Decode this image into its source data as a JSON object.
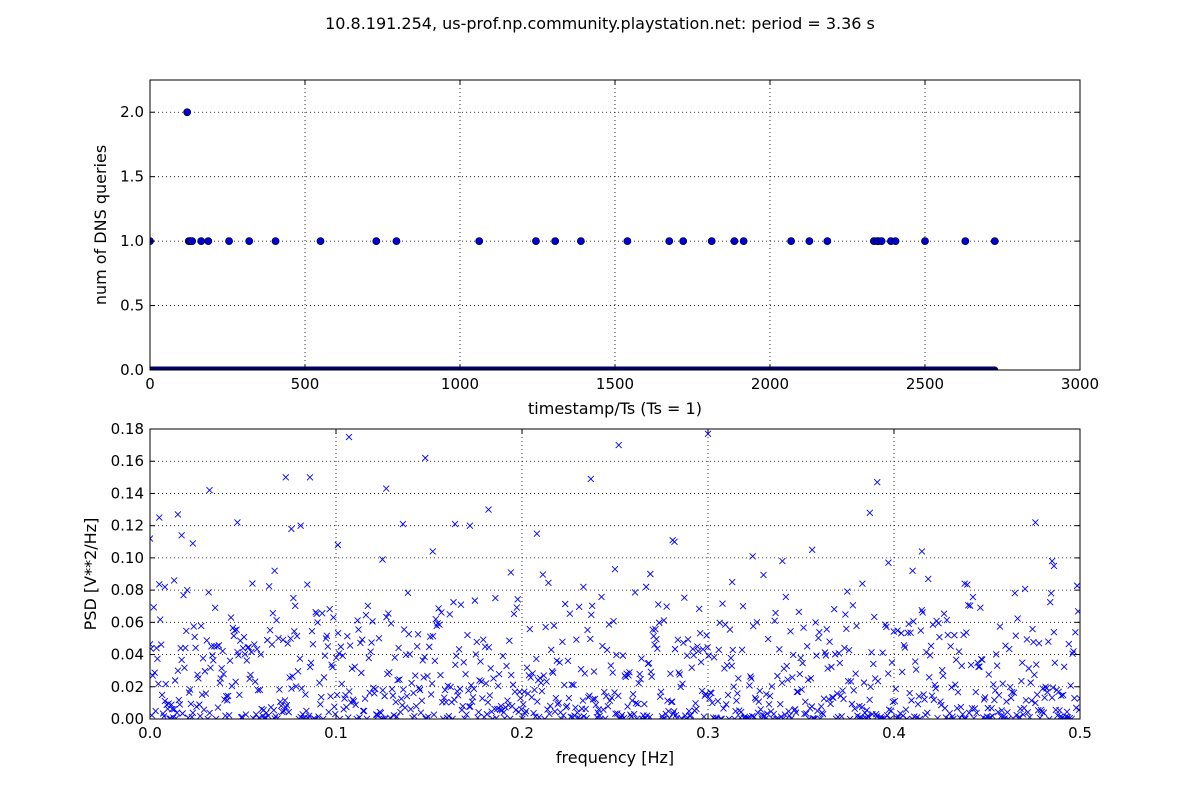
{
  "figure_title": "10.8.191.254, us-prof.np.community.playstation.net: period = 3.36 s",
  "chart_data": [
    {
      "type": "scatter",
      "xlabel": "timestamp/Ts (Ts = 1)",
      "ylabel": "num of DNS queries",
      "xlim": [
        0,
        3000
      ],
      "ylim": [
        0,
        2.25
      ],
      "xticks": [
        "0",
        "500",
        "1000",
        "1500",
        "2000",
        "2500",
        "3000"
      ],
      "yticks": [
        "0.0",
        "0.5",
        "1.0",
        "1.5",
        "2.0"
      ],
      "grid": true,
      "marker": "circle",
      "color": "#0000ff",
      "baseline": {
        "y": 0,
        "x_range": [
          0,
          2725
        ]
      },
      "series": [
        {
          "x": [
            0,
            120,
            125,
            130,
            136,
            165,
            188,
            255,
            320,
            405,
            550,
            730,
            795,
            1062,
            1245,
            1307,
            1390,
            1540,
            1675,
            1720,
            1812,
            1885,
            1915,
            2068,
            2127,
            2185,
            2335,
            2345,
            2350,
            2360,
            2390,
            2405,
            2500,
            2630,
            2725
          ],
          "y": [
            1,
            2,
            1,
            1,
            1,
            1,
            1,
            1,
            1,
            1,
            1,
            1,
            1,
            1,
            1,
            1,
            1,
            1,
            1,
            1,
            1,
            1,
            1,
            1,
            1,
            1,
            1,
            1,
            1,
            1,
            1,
            1,
            1,
            1,
            1
          ]
        }
      ]
    },
    {
      "type": "scatter",
      "xlabel": "frequency [Hz]",
      "ylabel": "PSD [V**2/Hz]",
      "xlim": [
        0,
        0.5
      ],
      "ylim": [
        0,
        0.18
      ],
      "xticks": [
        "0.0",
        "0.1",
        "0.2",
        "0.3",
        "0.4",
        "0.5"
      ],
      "yticks": [
        "0.00",
        "0.02",
        "0.04",
        "0.06",
        "0.08",
        "0.10",
        "0.12",
        "0.14",
        "0.16",
        "0.18"
      ],
      "grid": true,
      "marker": "x",
      "color": "#0000ff",
      "series": [
        {
          "x": [
            0.0,
            0.005,
            0.008,
            0.013,
            0.015,
            0.017,
            0.023,
            0.032,
            0.047,
            0.067,
            0.073,
            0.076,
            0.081,
            0.086,
            0.101,
            0.107,
            0.125,
            0.127,
            0.136,
            0.148,
            0.152,
            0.164,
            0.172,
            0.182,
            0.194,
            0.208,
            0.233,
            0.237,
            0.25,
            0.252,
            0.269,
            0.281,
            0.282,
            0.3,
            0.313,
            0.324,
            0.34,
            0.356,
            0.383,
            0.387,
            0.391,
            0.397,
            0.41,
            0.415,
            0.438,
            0.476,
            0.485,
            0.486
          ],
          "y": [
            0.112,
            0.125,
            0.082,
            0.086,
            0.127,
            0.114,
            0.109,
            0.142,
            0.122,
            0.092,
            0.15,
            0.118,
            0.12,
            0.15,
            0.108,
            0.175,
            0.099,
            0.143,
            0.121,
            0.162,
            0.104,
            0.121,
            0.12,
            0.13,
            0.091,
            0.115,
            0.082,
            0.149,
            0.093,
            0.17,
            0.09,
            0.111,
            0.11,
            0.177,
            0.085,
            0.101,
            0.098,
            0.105,
            0.084,
            0.128,
            0.147,
            0.097,
            0.092,
            0.104,
            0.084,
            0.122,
            0.098,
            0.095
          ]
        }
      ]
    }
  ]
}
